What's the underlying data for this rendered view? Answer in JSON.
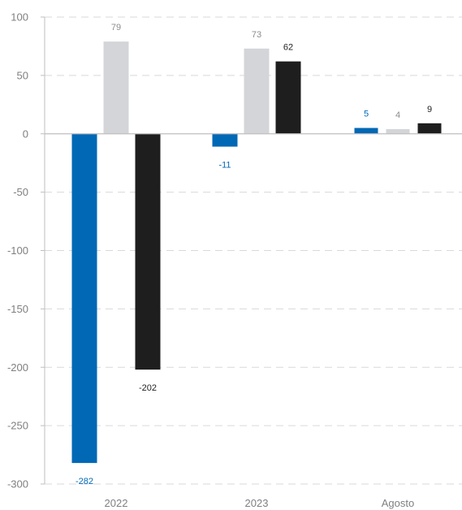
{
  "chart_data": {
    "type": "bar",
    "categories": [
      "2022",
      "2023",
      "Agosto"
    ],
    "series": [
      {
        "values": [
          -282,
          -11,
          5
        ],
        "color": "#0068b5",
        "label_color": "#0068b5"
      },
      {
        "values": [
          79,
          73,
          4
        ],
        "color": "#d3d5d8",
        "label_color": "#8c8c8c"
      },
      {
        "values": [
          -202,
          62,
          9
        ],
        "color": "#1e1e1e",
        "label_color": "#1e1e1e"
      }
    ],
    "y_ticks": [
      100,
      50,
      0,
      -50,
      -100,
      -150,
      -200,
      -250,
      -300
    ],
    "y_tick_labels": [
      "100",
      "50",
      "0",
      "-50",
      "-100",
      "-150",
      "-200",
      "-250",
      "-300"
    ],
    "ylim": [
      -300,
      100
    ],
    "grid": true,
    "legend": "none",
    "axis_color": "#bfbfbf",
    "grid_color": "#d9d9d9",
    "zero_line_color": "#bfbfbf"
  }
}
